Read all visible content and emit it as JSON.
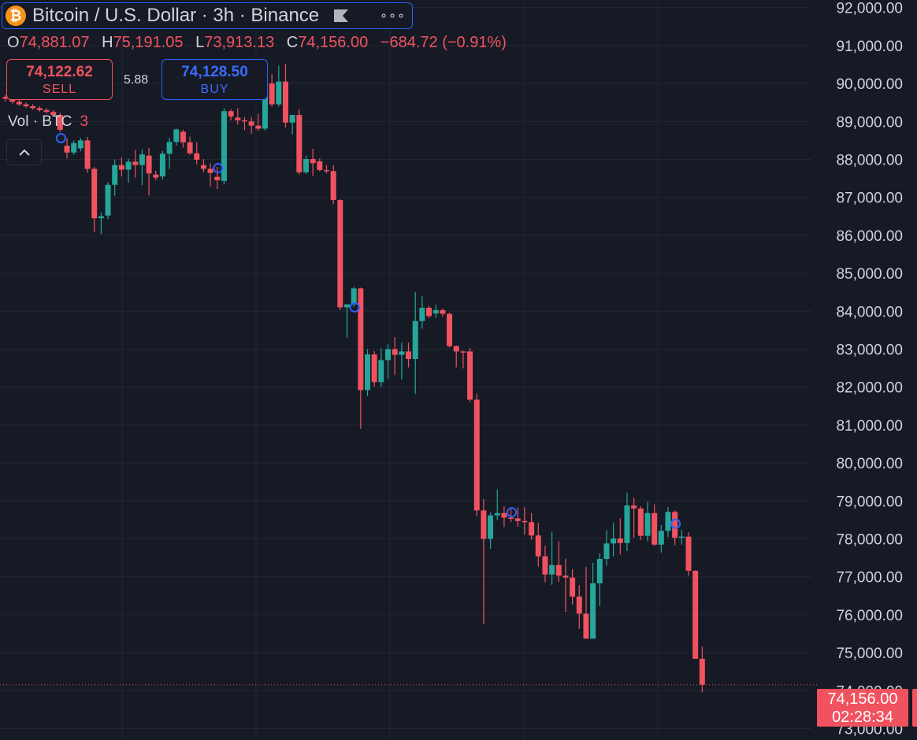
{
  "header": {
    "coin_symbol": "₿",
    "title": "Bitcoin / U.S. Dollar · 3h · Binance",
    "flag_icon": "flag-icon",
    "more_icon": "more-icon",
    "more_label": "∘∘∘"
  },
  "ohlc": {
    "o_key": "O",
    "o": "74,881.07",
    "h_key": "H",
    "h": "75,191.05",
    "l_key": "L",
    "l": "73,913.13",
    "c_key": "C",
    "c": "74,156.00",
    "change": "−684.72 (−0.91%)"
  },
  "trade": {
    "sell_price": "74,122.62",
    "sell_label": "SELL",
    "spread": "5.88",
    "buy_price": "74,128.50",
    "buy_label": "BUY"
  },
  "volume_legend": {
    "label": "Vol · BTC",
    "value": "3"
  },
  "collapse_icon": "chevron-up-icon",
  "last_price": {
    "price": "74,156.00",
    "countdown": "02:28:34"
  },
  "colors": {
    "up": "#26a69a",
    "down": "#f0525f",
    "background": "#161a25",
    "grid": "#232735",
    "marker": "#2962ff"
  },
  "chart_data": {
    "type": "candlestick",
    "ylim": [
      72700,
      92200
    ],
    "y_tick_values": [
      73000,
      74000,
      75000,
      76000,
      77000,
      78000,
      79000,
      80000,
      81000,
      82000,
      83000,
      84000,
      85000,
      86000,
      87000,
      88000,
      89000,
      90000,
      91000,
      92000
    ],
    "y_tick_labels": [
      "73,000.00",
      "74,000.00",
      "75,000.00",
      "76,000.00",
      "77,000.00",
      "78,000.00",
      "79,000.00",
      "80,000.00",
      "81,000.00",
      "82,000.00",
      "83,000.00",
      "84,000.00",
      "85,000.00",
      "86,000.00",
      "87,000.00",
      "88,000.00",
      "89,000.00",
      "90,000.00",
      "91,000.00",
      "92,000.00"
    ],
    "last_price": 74156,
    "candles": [
      [
        89650,
        89700,
        89520,
        89600
      ],
      [
        89580,
        89640,
        89470,
        89520
      ],
      [
        89520,
        89570,
        89410,
        89450
      ],
      [
        89450,
        89500,
        89360,
        89400
      ],
      [
        89400,
        89450,
        89310,
        89350
      ],
      [
        89350,
        89400,
        89260,
        89300
      ],
      [
        89300,
        89350,
        89210,
        89250
      ],
      [
        89250,
        89300,
        89140,
        89170
      ],
      [
        89170,
        89230,
        88720,
        88780
      ],
      [
        88360,
        88560,
        88020,
        88180
      ],
      [
        88180,
        88500,
        88120,
        88430
      ],
      [
        88290,
        88560,
        88210,
        88500
      ],
      [
        88500,
        88590,
        87650,
        87750
      ],
      [
        87750,
        87800,
        86080,
        86450
      ],
      [
        86450,
        86600,
        86030,
        86500
      ],
      [
        86520,
        87400,
        86430,
        87330
      ],
      [
        87330,
        88000,
        87040,
        87850
      ],
      [
        87850,
        88050,
        87550,
        87730
      ],
      [
        87730,
        88020,
        87390,
        87940
      ],
      [
        87940,
        88250,
        87520,
        87850
      ],
      [
        87850,
        88260,
        87320,
        88130
      ],
      [
        88100,
        88300,
        87050,
        87630
      ],
      [
        87600,
        87700,
        87450,
        87520
      ],
      [
        87550,
        88220,
        87470,
        88150
      ],
      [
        88150,
        88570,
        87750,
        88460
      ],
      [
        88460,
        88810,
        88360,
        88790
      ],
      [
        88730,
        88780,
        88310,
        88450
      ],
      [
        88450,
        88600,
        88120,
        88160
      ],
      [
        88160,
        88450,
        87870,
        87990
      ],
      [
        87850,
        88010,
        87660,
        87750
      ],
      [
        87750,
        87900,
        87290,
        87640
      ],
      [
        87540,
        87800,
        87220,
        87450
      ],
      [
        87430,
        89350,
        87340,
        89270
      ],
      [
        89270,
        89320,
        89030,
        89130
      ],
      [
        89100,
        89350,
        88920,
        89030
      ],
      [
        89030,
        89120,
        88770,
        89000
      ],
      [
        89000,
        89120,
        88680,
        88890
      ],
      [
        88890,
        89200,
        88750,
        88810
      ],
      [
        88810,
        90260,
        88760,
        90000
      ],
      [
        90000,
        90250,
        89390,
        89450
      ],
      [
        89450,
        90470,
        89390,
        90050
      ],
      [
        90050,
        90520,
        88840,
        88970
      ],
      [
        88970,
        89150,
        88660,
        89170
      ],
      [
        89170,
        89310,
        87600,
        87660
      ],
      [
        87660,
        88100,
        87620,
        88010
      ],
      [
        88010,
        88280,
        87560,
        87900
      ],
      [
        87950,
        88020,
        87680,
        87720
      ],
      [
        87720,
        87850,
        87630,
        87690
      ],
      [
        87690,
        87850,
        86820,
        86930
      ],
      [
        86930,
        86950,
        84030,
        84100
      ],
      [
        84100,
        84160,
        83300,
        84180
      ],
      [
        84180,
        84640,
        84110,
        84600
      ],
      [
        84600,
        84620,
        80900,
        81920
      ],
      [
        81920,
        83000,
        81760,
        82860
      ],
      [
        82860,
        82950,
        82010,
        82130
      ],
      [
        82130,
        83020,
        82000,
        82710
      ],
      [
        82710,
        83130,
        82220,
        83000
      ],
      [
        83000,
        83320,
        82320,
        82850
      ],
      [
        82850,
        83170,
        82200,
        82940
      ],
      [
        82940,
        83170,
        82520,
        82740
      ],
      [
        82740,
        84500,
        81820,
        83740
      ],
      [
        83740,
        84400,
        83540,
        84090
      ],
      [
        84090,
        84140,
        83820,
        83870
      ],
      [
        83940,
        84170,
        83820,
        84030
      ],
      [
        84030,
        84070,
        83850,
        83930
      ],
      [
        83930,
        83960,
        83040,
        83080
      ],
      [
        83080,
        83100,
        82520,
        82940
      ],
      [
        82940,
        82960,
        82490,
        82920
      ],
      [
        82940,
        83030,
        81600,
        81670
      ],
      [
        81670,
        81830,
        78600,
        78750
      ],
      [
        78750,
        79050,
        75750,
        78000
      ],
      [
        78000,
        78700,
        77740,
        78620
      ],
      [
        78620,
        79300,
        78500,
        78680
      ],
      [
        78680,
        78860,
        78310,
        78560
      ],
      [
        78560,
        78800,
        78440,
        78540
      ],
      [
        78540,
        78830,
        78320,
        78470
      ],
      [
        78470,
        78830,
        78110,
        78440
      ],
      [
        78440,
        78680,
        77980,
        78090
      ],
      [
        78090,
        78420,
        77270,
        77540
      ],
      [
        77540,
        77820,
        76850,
        77060
      ],
      [
        77060,
        78190,
        76790,
        77310
      ],
      [
        77310,
        77940,
        76870,
        77030
      ],
      [
        77030,
        77480,
        76070,
        76980
      ],
      [
        76980,
        77200,
        76270,
        76480
      ],
      [
        76480,
        76780,
        75630,
        76030
      ],
      [
        76030,
        77260,
        75420,
        75370
      ],
      [
        75370,
        77370,
        75400,
        76830
      ],
      [
        76830,
        77620,
        76230,
        77470
      ],
      [
        77470,
        78230,
        77290,
        77880
      ],
      [
        77880,
        78420,
        77540,
        78010
      ],
      [
        78010,
        78540,
        77590,
        77890
      ],
      [
        77890,
        79220,
        77680,
        78880
      ],
      [
        78880,
        79080,
        78030,
        78800
      ],
      [
        78800,
        78860,
        77970,
        78080
      ],
      [
        78080,
        78980,
        77940,
        78680
      ],
      [
        78680,
        78910,
        77810,
        77850
      ],
      [
        77850,
        78370,
        77640,
        78210
      ],
      [
        78210,
        78840,
        78050,
        78710
      ],
      [
        78710,
        78750,
        77830,
        78030
      ],
      [
        78030,
        78230,
        77850,
        78060
      ],
      [
        78060,
        78170,
        77030,
        77160
      ],
      [
        77160,
        77170,
        74840,
        74840
      ],
      [
        74840,
        75160,
        73960,
        74156
      ]
    ],
    "markers": [
      {
        "index": 8,
        "price": 88560
      },
      {
        "index": 31,
        "price": 87770
      },
      {
        "index": 51,
        "price": 84100
      },
      {
        "index": 74,
        "price": 78700
      },
      {
        "index": 98,
        "price": 78400
      }
    ]
  }
}
